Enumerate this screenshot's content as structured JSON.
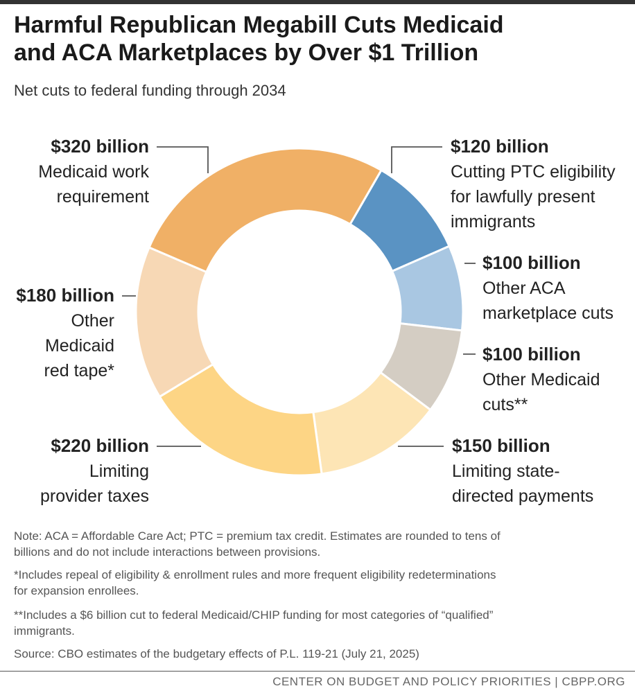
{
  "chart_data": {
    "type": "pie",
    "subtype": "donut",
    "title": "Harmful Republican Megabill Cuts Medicaid and ACA Marketplaces by Over $1 Trillion",
    "title_lines": [
      "Harmful Republican Megabill Cuts Medicaid",
      "and ACA Marketplaces by Over $1 Trillion"
    ],
    "subtitle": "Net cuts to federal funding through 2034",
    "unit": "billion dollars",
    "slices": [
      {
        "name": "Cutting PTC eligibility for lawfully present immigrants",
        "value": 120,
        "value_label": "$120 billion",
        "desc_lines": [
          "Cutting PTC eligibility",
          "for lawfully present",
          "immigrants"
        ],
        "color": "#5a93c3",
        "side": "right"
      },
      {
        "name": "Other ACA marketplace cuts",
        "value": 100,
        "value_label": "$100 billion",
        "desc_lines": [
          "Other ACA",
          "marketplace cuts"
        ],
        "color": "#a9c7e2",
        "side": "right"
      },
      {
        "name": "Other Medicaid cuts**",
        "value": 100,
        "value_label": "$100 billion",
        "desc_lines": [
          "Other Medicaid",
          "cuts**"
        ],
        "color": "#d4cdc3",
        "side": "right"
      },
      {
        "name": "Limiting state-directed payments",
        "value": 150,
        "value_label": "$150 billion",
        "desc_lines": [
          "Limiting state-",
          "directed payments"
        ],
        "color": "#fde5b5",
        "side": "right"
      },
      {
        "name": "Limiting provider taxes",
        "value": 220,
        "value_label": "$220 billion",
        "desc_lines": [
          "Limiting",
          "provider taxes"
        ],
        "color": "#fdd585",
        "side": "left"
      },
      {
        "name": "Other Medicaid red tape*",
        "value": 180,
        "value_label": "$180 billion",
        "desc_lines": [
          "Other",
          "Medicaid",
          "red tape*"
        ],
        "color": "#f7d8b5",
        "side": "left"
      },
      {
        "name": "Medicaid work requirement",
        "value": 320,
        "value_label": "$320 billion",
        "desc_lines": [
          "Medicaid work",
          "requirement"
        ],
        "color": "#f0b066",
        "side": "left"
      }
    ]
  },
  "notes": {
    "note_lines": [
      "Note: ACA = Affordable Care Act; PTC = premium tax credit. Estimates are rounded to tens of",
      "billions and do not include interactions between provisions."
    ],
    "footnote1_lines": [
      "*Includes repeal of eligibility & enrollment rules and more frequent eligibility redeterminations",
      "for expansion enrollees."
    ],
    "footnote2_lines": [
      "**Includes a $6 billion cut to federal Medicaid/CHIP funding for most categories of “qualified”",
      "immigrants."
    ],
    "source": "Source: CBO estimates of the budgetary effects of P.L. 119-21 (July 21, 2025)"
  },
  "footer": "CENTER ON BUDGET AND POLICY PRIORITIES | CBPP.ORG"
}
